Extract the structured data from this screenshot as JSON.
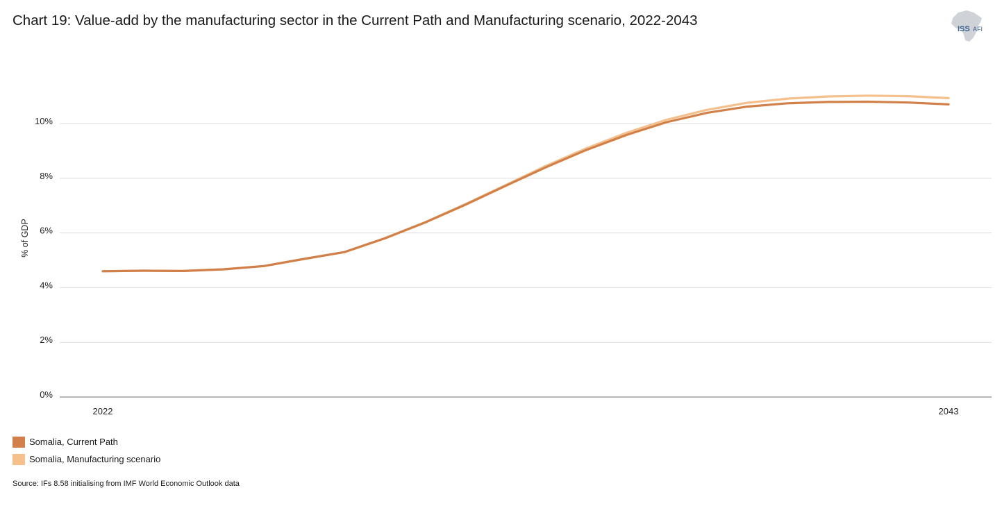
{
  "title": "Chart 19: Value-add by the manufacturing sector in the Current Path and Manufacturing scenario, 2022-2043",
  "logo": {
    "main": "ISS",
    "sub": "AFI"
  },
  "source": "Source: IFs 8.58 initialising from IMF World Economic Outlook data",
  "colors": {
    "current_path": "#d08048",
    "manufacturing": "#f5c08c",
    "grid": "#dcdcdc",
    "axis": "#8a8a8a"
  },
  "chart_data": {
    "type": "line",
    "title": "Chart 19: Value-add by the manufacturing sector in the Current Path and Manufacturing scenario, 2022-2043",
    "xlabel": "",
    "ylabel": "% of GDP",
    "x": [
      2022,
      2023,
      2024,
      2025,
      2026,
      2027,
      2028,
      2029,
      2030,
      2031,
      2032,
      2033,
      2034,
      2035,
      2036,
      2037,
      2038,
      2039,
      2040,
      2041,
      2042,
      2043
    ],
    "x_tick_labels": [
      "2022",
      "2043"
    ],
    "ylim": [
      0,
      12
    ],
    "y_ticks": [
      0,
      2,
      4,
      6,
      8,
      10
    ],
    "y_tick_labels": [
      "0%",
      "2%",
      "4%",
      "6%",
      "8%",
      "10%"
    ],
    "grid": true,
    "legend_position": "bottom-left",
    "series": [
      {
        "name": "Somalia, Current Path",
        "color": "#d08048",
        "values": [
          4.6,
          4.62,
          4.61,
          4.67,
          4.79,
          5.05,
          5.3,
          5.8,
          6.38,
          7.03,
          7.72,
          8.4,
          9.03,
          9.58,
          10.05,
          10.39,
          10.62,
          10.74,
          10.79,
          10.8,
          10.77,
          10.7
        ]
      },
      {
        "name": "Somalia, Manufacturing scenario",
        "color": "#f5c08c",
        "values": [
          4.6,
          4.62,
          4.61,
          4.67,
          4.79,
          5.05,
          5.3,
          5.81,
          6.39,
          7.05,
          7.75,
          8.45,
          9.09,
          9.66,
          10.14,
          10.5,
          10.76,
          10.91,
          10.99,
          11.02,
          11.0,
          10.93
        ]
      }
    ]
  }
}
